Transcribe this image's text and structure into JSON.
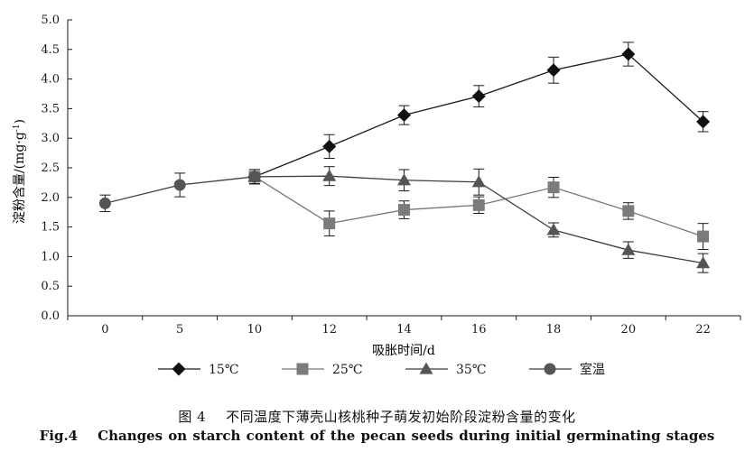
{
  "chart_data": {
    "type": "line",
    "ylabel": "淀粉含量/(mg·g",
    "ylabel_sup": "-1",
    "ylabel_close": ")",
    "xlabel": "吸胀时间/d",
    "ylim": [
      0,
      5
    ],
    "y_ticks": [
      "0.0",
      "0.5",
      "1.0",
      "1.5",
      "2.0",
      "2.5",
      "3.0",
      "3.5",
      "4.0",
      "4.5",
      "5.0"
    ],
    "categories": [
      "0",
      "5",
      "10",
      "12",
      "14",
      "16",
      "18",
      "20",
      "22"
    ],
    "legend_position": "bottom",
    "series": [
      {
        "name": "15℃",
        "marker": "diamond",
        "x": [
          "10",
          "12",
          "14",
          "16",
          "18",
          "20",
          "22"
        ],
        "y": [
          2.35,
          2.86,
          3.39,
          3.71,
          4.15,
          4.42,
          3.28
        ],
        "err": [
          0.12,
          0.2,
          0.16,
          0.18,
          0.22,
          0.2,
          0.17
        ]
      },
      {
        "name": "25℃",
        "marker": "square",
        "x": [
          "10",
          "12",
          "14",
          "16",
          "18",
          "20",
          "22"
        ],
        "y": [
          2.35,
          1.56,
          1.79,
          1.87,
          2.17,
          1.77,
          1.34
        ],
        "err": [
          0.12,
          0.21,
          0.15,
          0.14,
          0.17,
          0.14,
          0.22
        ]
      },
      {
        "name": "35℃",
        "marker": "triangle",
        "x": [
          "10",
          "12",
          "14",
          "16",
          "18",
          "20",
          "22"
        ],
        "y": [
          2.35,
          2.36,
          2.29,
          2.26,
          1.45,
          1.11,
          0.89
        ],
        "err": [
          0.12,
          0.16,
          0.18,
          0.22,
          0.12,
          0.14,
          0.16
        ]
      },
      {
        "name": "室温",
        "marker": "circle",
        "x": [
          "0",
          "5",
          "10"
        ],
        "y": [
          1.9,
          2.21,
          2.35
        ],
        "err": [
          0.14,
          0.2,
          0.12
        ]
      }
    ]
  },
  "caption": {
    "cn_num": "图 4",
    "cn_text": "不同温度下薄壳山核桃种子萌发初始阶段淀粉含量的变化",
    "en_num": "Fig.4",
    "en_text": "Changes on starch content of the pecan seeds during initial germinating stages"
  }
}
